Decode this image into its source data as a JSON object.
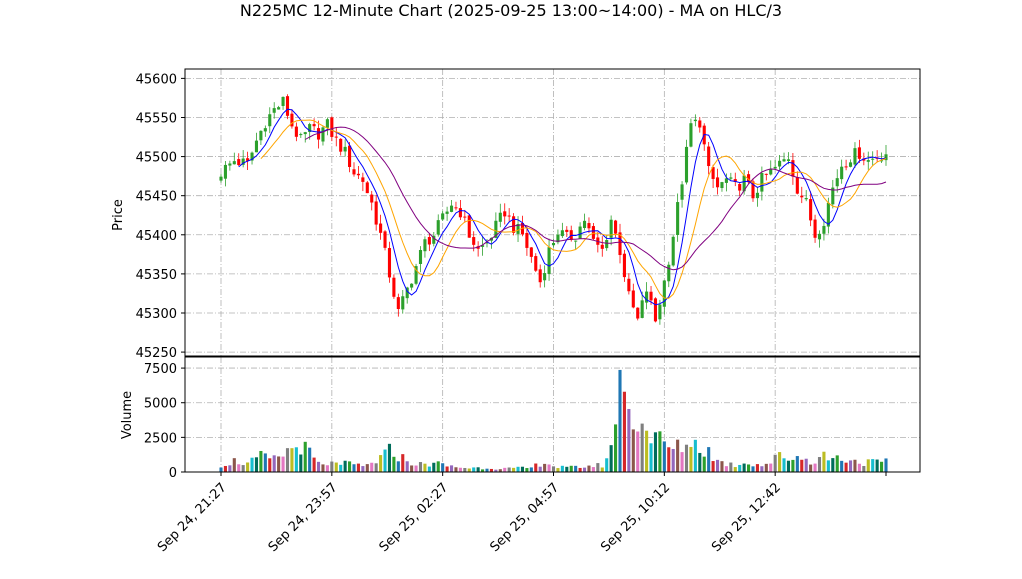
{
  "chart_data": {
    "type": "candlestick",
    "title": "N225MC 12-Minute Chart (2025-09-25 13:00~14:00) - MA on HLC/3",
    "interval_minutes": 12,
    "price_panel": {
      "ylabel": "Price",
      "ylim": [
        45245,
        45612
      ],
      "yticks": [
        45250,
        45300,
        45350,
        45400,
        45450,
        45500,
        45550,
        45600
      ],
      "up_color": "#2ca02c",
      "down_color": "#ff0000",
      "ma_colors": [
        "#0000ff",
        "#ffa500",
        "#800080"
      ]
    },
    "volume_panel": {
      "ylabel": "Volume",
      "ylim": [
        0,
        8300
      ],
      "yticks": [
        0,
        2500,
        5000,
        7500
      ],
      "bar_colors": [
        "#1f77b4",
        "#d62728",
        "#9467bd",
        "#8c564b",
        "#e377c2",
        "#7f7f7f",
        "#bcbd22",
        "#17becf",
        "#006d5b",
        "#2ca02c"
      ]
    },
    "x_tick_labels": [
      "Sep 24, 21:27",
      "Sep 24, 23:57",
      "Sep 25, 02:27",
      "Sep 25, 04:57",
      "Sep 25, 10:12",
      "Sep 25, 12:42"
    ],
    "x_tick_positions": [
      0,
      25,
      50,
      75,
      100,
      125
    ],
    "anchors": {
      "close": [
        [
          0,
          45480
        ],
        [
          3,
          45495
        ],
        [
          6,
          45490
        ],
        [
          8,
          45520
        ],
        [
          10,
          45545
        ],
        [
          12,
          45560
        ],
        [
          14,
          45570
        ],
        [
          16,
          45540
        ],
        [
          18,
          45520
        ],
        [
          20,
          45535
        ],
        [
          22,
          45530
        ],
        [
          24,
          45540
        ],
        [
          26,
          45520
        ],
        [
          28,
          45505
        ],
        [
          30,
          45480
        ],
        [
          32,
          45470
        ],
        [
          34,
          45440
        ],
        [
          36,
          45400
        ],
        [
          38,
          45350
        ],
        [
          40,
          45300
        ],
        [
          42,
          45330
        ],
        [
          44,
          45360
        ],
        [
          46,
          45390
        ],
        [
          48,
          45400
        ],
        [
          50,
          45420
        ],
        [
          52,
          45440
        ],
        [
          54,
          45430
        ],
        [
          56,
          45400
        ],
        [
          58,
          45380
        ],
        [
          60,
          45390
        ],
        [
          62,
          45410
        ],
        [
          64,
          45430
        ],
        [
          66,
          45410
        ],
        [
          68,
          45400
        ],
        [
          70,
          45370
        ],
        [
          72,
          45340
        ],
        [
          74,
          45380
        ],
        [
          76,
          45405
        ],
        [
          78,
          45395
        ],
        [
          80,
          45400
        ],
        [
          82,
          45420
        ],
        [
          84,
          45390
        ],
        [
          86,
          45380
        ],
        [
          88,
          45420
        ],
        [
          90,
          45380
        ],
        [
          92,
          45320
        ],
        [
          94,
          45290
        ],
        [
          96,
          45330
        ],
        [
          98,
          45290
        ],
        [
          100,
          45340
        ],
        [
          102,
          45400
        ],
        [
          104,
          45470
        ],
        [
          106,
          45540
        ],
        [
          108,
          45545
        ],
        [
          110,
          45480
        ],
        [
          112,
          45460
        ],
        [
          114,
          45470
        ],
        [
          116,
          45460
        ],
        [
          118,
          45470
        ],
        [
          120,
          45450
        ],
        [
          122,
          45470
        ],
        [
          124,
          45480
        ],
        [
          126,
          45490
        ],
        [
          128,
          45500
        ],
        [
          130,
          45460
        ],
        [
          132,
          45440
        ],
        [
          134,
          45400
        ],
        [
          136,
          45420
        ],
        [
          138,
          45460
        ],
        [
          140,
          45490
        ],
        [
          142,
          45500
        ],
        [
          144,
          45505
        ],
        [
          146,
          45495
        ],
        [
          148,
          45500
        ],
        [
          150,
          45505
        ]
      ],
      "volume": [
        [
          0,
          500
        ],
        [
          3,
          800
        ],
        [
          6,
          600
        ],
        [
          9,
          1100
        ],
        [
          12,
          900
        ],
        [
          15,
          1500
        ],
        [
          18,
          2000
        ],
        [
          20,
          1300
        ],
        [
          22,
          600
        ],
        [
          24,
          400
        ],
        [
          26,
          800
        ],
        [
          28,
          600
        ],
        [
          30,
          500
        ],
        [
          32,
          400
        ],
        [
          34,
          600
        ],
        [
          36,
          1000
        ],
        [
          38,
          1500
        ],
        [
          40,
          1200
        ],
        [
          42,
          800
        ],
        [
          44,
          600
        ],
        [
          46,
          500
        ],
        [
          48,
          700
        ],
        [
          50,
          500
        ],
        [
          52,
          400
        ],
        [
          55,
          300
        ],
        [
          60,
          300
        ],
        [
          65,
          250
        ],
        [
          70,
          300
        ],
        [
          73,
          800
        ],
        [
          75,
          400
        ],
        [
          78,
          300
        ],
        [
          82,
          400
        ],
        [
          86,
          500
        ],
        [
          88,
          1500
        ],
        [
          90,
          8000
        ],
        [
          92,
          3800
        ],
        [
          94,
          4200
        ],
        [
          96,
          3000
        ],
        [
          98,
          2500
        ],
        [
          100,
          2000
        ],
        [
          102,
          1600
        ],
        [
          104,
          1900
        ],
        [
          106,
          2200
        ],
        [
          108,
          1800
        ],
        [
          110,
          1500
        ],
        [
          112,
          800
        ],
        [
          114,
          600
        ],
        [
          116,
          500
        ],
        [
          118,
          700
        ],
        [
          120,
          600
        ],
        [
          122,
          500
        ],
        [
          124,
          700
        ],
        [
          126,
          1200
        ],
        [
          128,
          1000
        ],
        [
          130,
          1100
        ],
        [
          132,
          900
        ],
        [
          134,
          800
        ],
        [
          136,
          1200
        ],
        [
          138,
          1000
        ],
        [
          140,
          1000
        ],
        [
          142,
          900
        ],
        [
          144,
          700
        ],
        [
          146,
          700
        ],
        [
          148,
          700
        ],
        [
          150,
          700
        ]
      ]
    }
  }
}
